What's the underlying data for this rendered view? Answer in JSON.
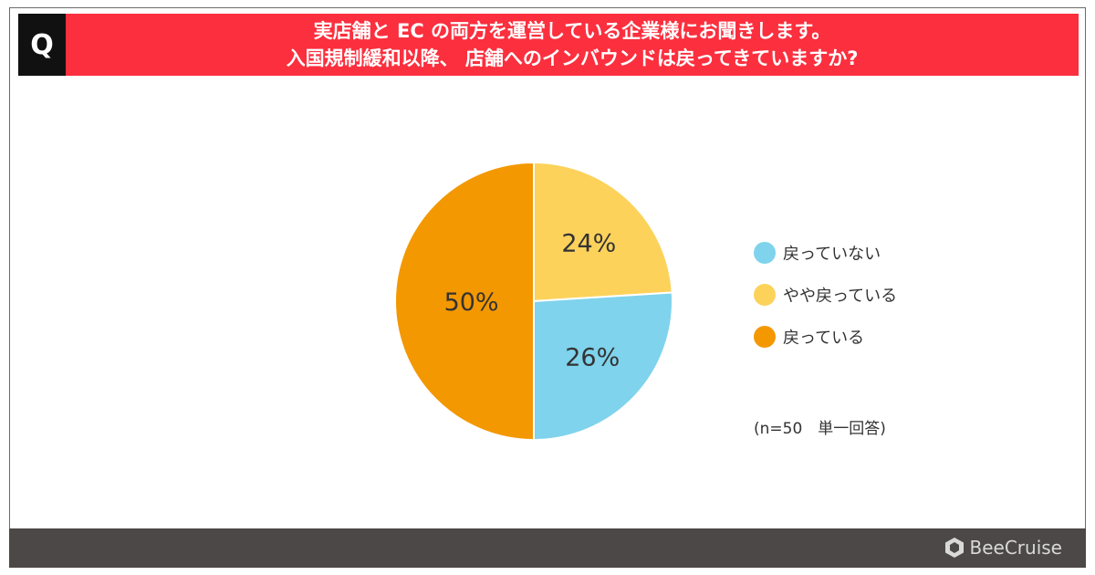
{
  "header": {
    "badge": "Q",
    "line1": "実店舗と EC の両方を運営している企業様にお聞きします。",
    "line2": "入国規制緩和以降、 店舗へのインバウンドは戻ってきていますか?"
  },
  "chart_data": {
    "type": "pie",
    "slices": [
      {
        "label": "戻っていない",
        "value": 26,
        "display": "26%",
        "color": "#7fd3ec"
      },
      {
        "label": "やや戻っている",
        "value": 24,
        "display": "24%",
        "color": "#fcd25b"
      },
      {
        "label": "戻っている",
        "value": 50,
        "display": "50%",
        "color": "#f39800"
      }
    ],
    "legend_position": "right",
    "note": "(n=50　単一回答)"
  },
  "footer": {
    "brand": "BeeCruise",
    "brand_icon": "hexagon-logo-icon"
  }
}
